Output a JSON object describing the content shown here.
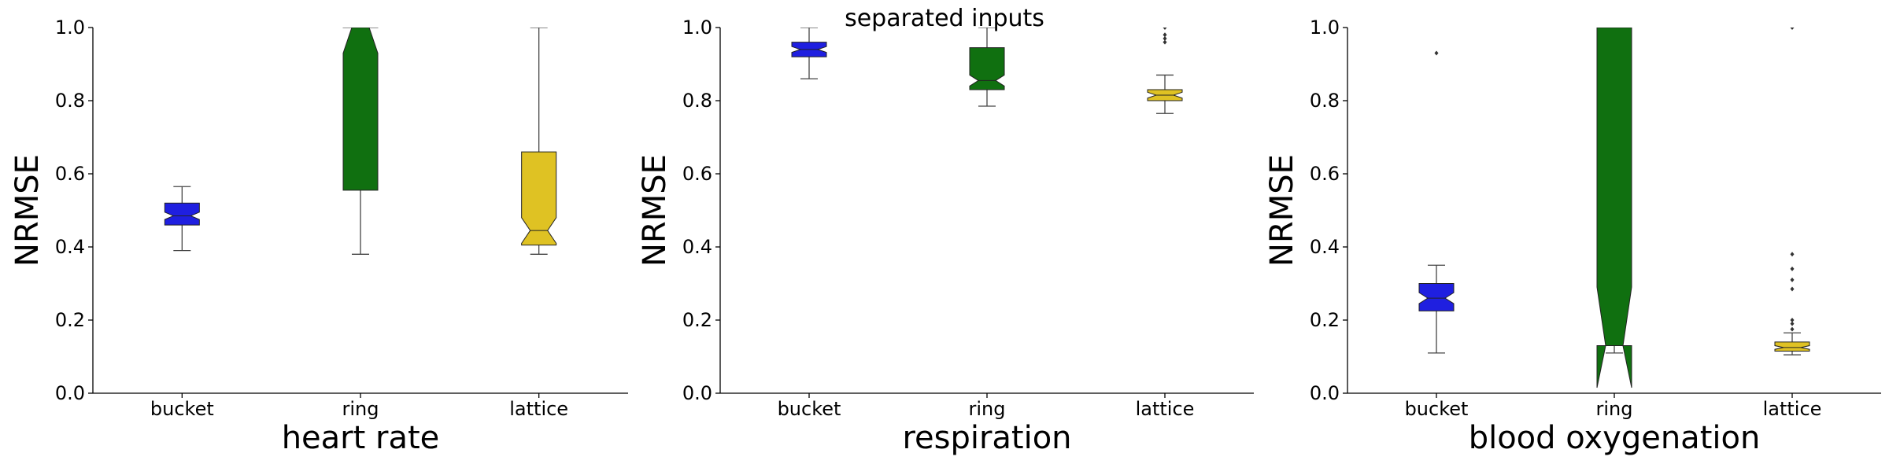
{
  "figure": {
    "suptitle": "separated inputs"
  },
  "colors": {
    "bucket": "#1f1fe0",
    "ring": "#107010",
    "lattice": "#dfc223",
    "axis": "#000000",
    "whisker": "#444444"
  },
  "chart_data": [
    {
      "type": "box",
      "xlabel": "heart rate",
      "ylabel": "NRMSE",
      "ylim": [
        0,
        1.0
      ],
      "yticks": [
        "0.0",
        "0.2",
        "0.4",
        "0.6",
        "0.8",
        "1.0"
      ],
      "categories": [
        "bucket",
        "ring",
        "lattice"
      ],
      "notched": true,
      "boxes": [
        {
          "category": "bucket",
          "whislo": 0.39,
          "q1": 0.46,
          "med": 0.485,
          "q3": 0.52,
          "whishi": 0.565,
          "notch_lo": 0.475,
          "notch_hi": 0.495,
          "fliers": []
        },
        {
          "category": "ring",
          "whislo": 0.38,
          "q1": 0.555,
          "med": 1.0,
          "q3": 1.0,
          "whishi": 1.0,
          "notch_lo": 0.93,
          "notch_hi": 1.07,
          "fliers": []
        },
        {
          "category": "lattice",
          "whislo": 0.38,
          "q1": 0.405,
          "med": 0.445,
          "q3": 0.66,
          "whishi": 1.0,
          "notch_lo": 0.41,
          "notch_hi": 0.48,
          "fliers": []
        }
      ]
    },
    {
      "type": "box",
      "xlabel": "respiration",
      "ylabel": "NRMSE",
      "ylim": [
        0,
        1.0
      ],
      "yticks": [
        "0.0",
        "0.2",
        "0.4",
        "0.6",
        "0.8",
        "1.0"
      ],
      "categories": [
        "bucket",
        "ring",
        "lattice"
      ],
      "notched": true,
      "boxes": [
        {
          "category": "bucket",
          "whislo": 0.86,
          "q1": 0.92,
          "med": 0.94,
          "q3": 0.96,
          "whishi": 1.0,
          "notch_lo": 0.932,
          "notch_hi": 0.948,
          "fliers": []
        },
        {
          "category": "ring",
          "whislo": 0.785,
          "q1": 0.83,
          "med": 0.855,
          "q3": 0.945,
          "whishi": 1.0,
          "notch_lo": 0.84,
          "notch_hi": 0.87,
          "fliers": []
        },
        {
          "category": "lattice",
          "whislo": 0.765,
          "q1": 0.8,
          "med": 0.815,
          "q3": 0.83,
          "whishi": 0.87,
          "notch_lo": 0.807,
          "notch_hi": 0.823,
          "fliers": [
            0.96,
            0.97,
            0.98,
            1.0
          ]
        }
      ]
    },
    {
      "type": "box",
      "xlabel": "blood oxygenation",
      "ylabel": "NRMSE",
      "ylim": [
        0,
        1.0
      ],
      "yticks": [
        "0.0",
        "0.2",
        "0.4",
        "0.6",
        "0.8",
        "1.0"
      ],
      "categories": [
        "bucket",
        "ring",
        "lattice"
      ],
      "notched": true,
      "boxes": [
        {
          "category": "bucket",
          "whislo": 0.11,
          "q1": 0.225,
          "med": 0.26,
          "q3": 0.3,
          "whishi": 0.35,
          "notch_lo": 0.245,
          "notch_hi": 0.275,
          "fliers": [
            0.93
          ]
        },
        {
          "category": "ring",
          "whislo": 0.11,
          "q1": 0.13,
          "med": 0.13,
          "q3": 1.0,
          "whishi": 1.0,
          "notch_lo": 0.015,
          "notch_hi": 0.29,
          "fliers": []
        },
        {
          "category": "lattice",
          "whislo": 0.105,
          "q1": 0.115,
          "med": 0.125,
          "q3": 0.14,
          "whishi": 0.165,
          "notch_lo": 0.12,
          "notch_hi": 0.13,
          "fliers": [
            0.175,
            0.19,
            0.2,
            0.285,
            0.31,
            0.34,
            0.38,
            1.0
          ]
        }
      ]
    }
  ]
}
